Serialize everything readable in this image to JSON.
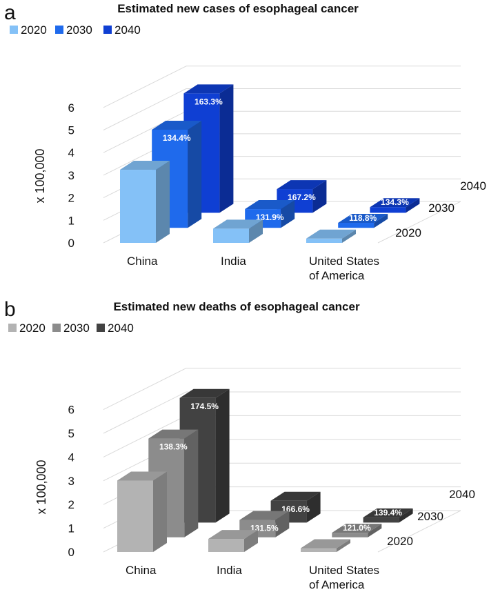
{
  "chart_data": [
    {
      "type": "bar",
      "panel_label": "a",
      "title": "Estimated new cases of esophageal cancer",
      "ylabel": "x 100,000",
      "yticks": [
        "0",
        "1",
        "2",
        "3",
        "4",
        "5",
        "6"
      ],
      "ylim": [
        0,
        6.3
      ],
      "categories": [
        "China",
        "India",
        "United States\nof America"
      ],
      "series": [
        {
          "name": "2020",
          "color": "#84c1f7",
          "values": [
            3.24,
            0.63,
            0.19
          ],
          "labels": [
            "",
            "",
            ""
          ]
        },
        {
          "name": "2030",
          "color": "#1f6aec",
          "values": [
            4.35,
            0.83,
            0.22
          ],
          "labels": [
            "134.4%",
            "131.9%",
            "118.8%"
          ]
        },
        {
          "name": "2040",
          "color": "#0f3fd3",
          "values": [
            5.29,
            1.05,
            0.25
          ],
          "labels": [
            "163.3%",
            "167.2%",
            "134.3%"
          ]
        }
      ],
      "depth_labels": [
        "2040",
        "2030",
        "2020"
      ]
    },
    {
      "type": "bar",
      "panel_label": "b",
      "title": "Estimated new deaths of esophageal cancer",
      "ylabel": "x 100,000",
      "yticks": [
        "0",
        "1",
        "2",
        "3",
        "4",
        "5",
        "6"
      ],
      "ylim": [
        0,
        6.3
      ],
      "categories": [
        "China",
        "India",
        "United States\nof America"
      ],
      "series": [
        {
          "name": "2020",
          "color": "#b3b3b3",
          "values": [
            3.01,
            0.55,
            0.16
          ],
          "labels": [
            "",
            "",
            ""
          ]
        },
        {
          "name": "2030",
          "color": "#8c8c8c",
          "values": [
            4.16,
            0.73,
            0.19
          ],
          "labels": [
            "138.3%",
            "131.5%",
            "121.0%"
          ]
        },
        {
          "name": "2040",
          "color": "#424242",
          "values": [
            5.25,
            0.92,
            0.22
          ],
          "labels": [
            "174.5%",
            "166.6%",
            "139.4%"
          ]
        }
      ],
      "depth_labels": [
        "2040",
        "2030",
        "2020"
      ]
    }
  ]
}
